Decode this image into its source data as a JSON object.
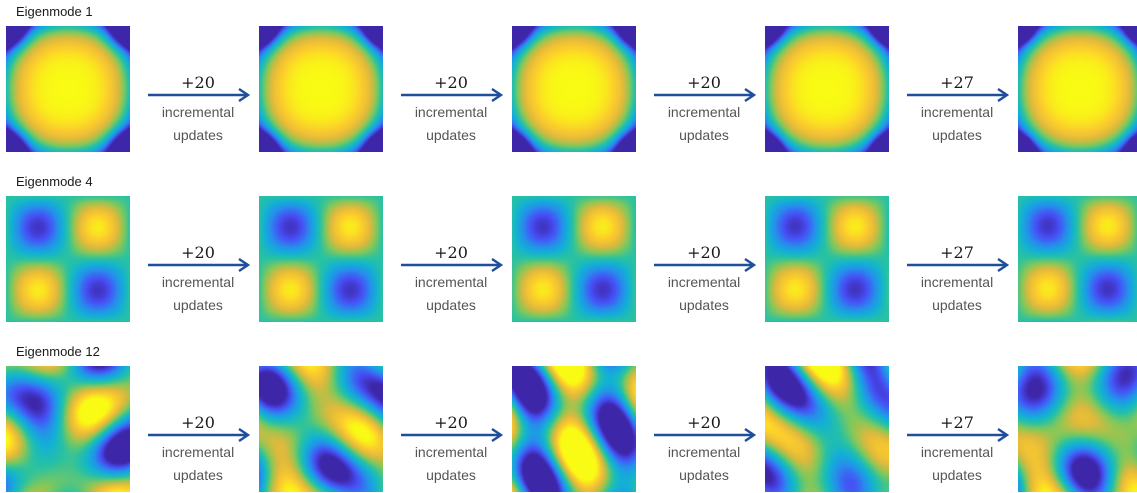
{
  "update_text_line1": "incremental",
  "update_text_line2": "updates",
  "colors": {
    "arrow": "#1f4e9c",
    "label_text": "#1a1a1a",
    "update_text": "#555555"
  },
  "colormap": "parula",
  "rows": [
    {
      "label": "Eigenmode 1",
      "steps": [
        "+20",
        "+20",
        "+20",
        "+27"
      ],
      "pattern": "fundamental"
    },
    {
      "label": "Eigenmode 4",
      "steps": [
        "+20",
        "+20",
        "+20",
        "+27"
      ],
      "pattern": "quadrant"
    },
    {
      "label": "Eigenmode 12",
      "steps": [
        "+20",
        "+20",
        "+20",
        "+27"
      ],
      "pattern": "high-order"
    }
  ]
}
